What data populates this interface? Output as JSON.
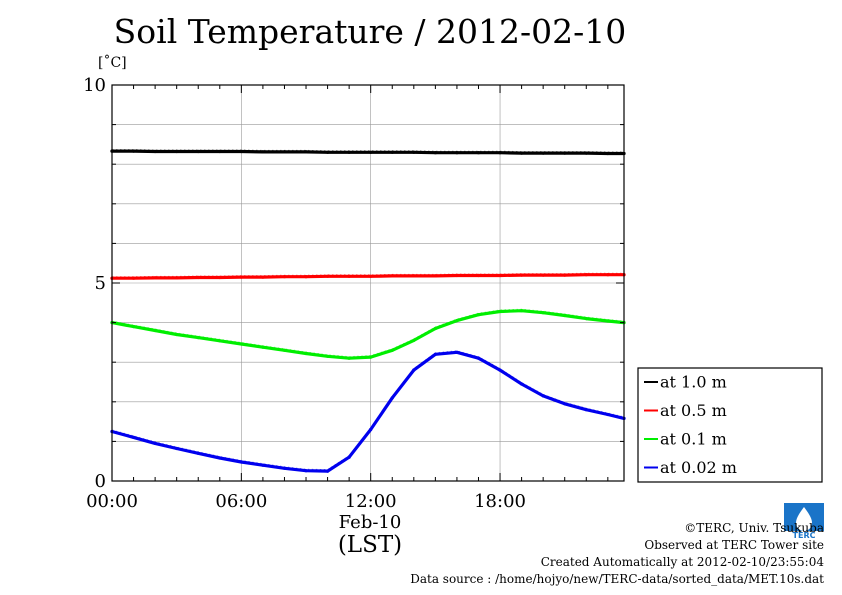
{
  "title": "Soil Temperature / 2012-02-10",
  "unit_label": "[˚C]",
  "date_label": "Feb-10",
  "timezone_label": "(LST)",
  "credits": {
    "copyright": "©TERC, Univ. Tsukuba",
    "site": "Observed at TERC Tower site",
    "created": "Created Automatically at 2012-02-10/23:55:04",
    "source": "Data source : /home/hojyo/new/TERC-data/sorted_data/MET.10s.dat"
  },
  "logo_text": "TERC",
  "chart_data": {
    "type": "line",
    "title": "Soil Temperature / 2012-02-10",
    "ylabel": "[˚C]",
    "xlabel": "(LST)",
    "xlim": [
      0,
      23.75
    ],
    "ylim": [
      0,
      10
    ],
    "x_ticks": [
      0,
      6,
      12,
      18
    ],
    "x_tick_labels": [
      "00:00",
      "06:00",
      "12:00",
      "18:00"
    ],
    "y_ticks": [
      0,
      5,
      10
    ],
    "y_tick_labels": [
      "0",
      "5",
      "10"
    ],
    "grid": true,
    "legend_position": "right",
    "x": [
      0,
      1,
      2,
      3,
      4,
      5,
      6,
      7,
      8,
      9,
      10,
      11,
      12,
      13,
      14,
      15,
      16,
      17,
      18,
      19,
      20,
      21,
      22,
      23,
      23.75
    ],
    "series": [
      {
        "name": "at 1.0 m",
        "color": "#000000",
        "values": [
          8.33,
          8.33,
          8.32,
          8.32,
          8.32,
          8.32,
          8.32,
          8.31,
          8.31,
          8.31,
          8.3,
          8.3,
          8.3,
          8.3,
          8.3,
          8.29,
          8.29,
          8.29,
          8.29,
          8.28,
          8.28,
          8.28,
          8.28,
          8.27,
          8.27
        ]
      },
      {
        "name": "at 0.5 m",
        "color": "#ff0000",
        "values": [
          5.12,
          5.12,
          5.13,
          5.13,
          5.14,
          5.14,
          5.15,
          5.15,
          5.16,
          5.16,
          5.17,
          5.17,
          5.17,
          5.18,
          5.18,
          5.18,
          5.19,
          5.19,
          5.19,
          5.2,
          5.2,
          5.2,
          5.21,
          5.21,
          5.21
        ]
      },
      {
        "name": "at 0.1 m",
        "color": "#00ee00",
        "values": [
          4.0,
          3.9,
          3.8,
          3.7,
          3.62,
          3.54,
          3.46,
          3.38,
          3.3,
          3.22,
          3.15,
          3.1,
          3.13,
          3.3,
          3.55,
          3.85,
          4.05,
          4.2,
          4.28,
          4.3,
          4.25,
          4.18,
          4.1,
          4.04,
          4.0
        ]
      },
      {
        "name": "at 0.02 m",
        "color": "#0000ee",
        "values": [
          1.25,
          1.1,
          0.95,
          0.82,
          0.7,
          0.58,
          0.48,
          0.4,
          0.32,
          0.26,
          0.25,
          0.6,
          1.3,
          2.1,
          2.8,
          3.2,
          3.25,
          3.1,
          2.8,
          2.45,
          2.15,
          1.95,
          1.8,
          1.68,
          1.58
        ]
      }
    ]
  }
}
